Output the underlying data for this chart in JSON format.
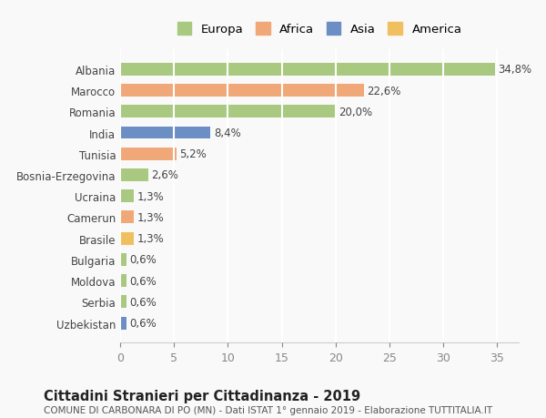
{
  "categories": [
    "Albania",
    "Marocco",
    "Romania",
    "India",
    "Tunisia",
    "Bosnia-Erzegovina",
    "Ucraina",
    "Camerun",
    "Brasile",
    "Bulgaria",
    "Moldova",
    "Serbia",
    "Uzbekistan"
  ],
  "values": [
    34.8,
    22.6,
    20.0,
    8.4,
    5.2,
    2.6,
    1.3,
    1.3,
    1.3,
    0.6,
    0.6,
    0.6,
    0.6
  ],
  "labels": [
    "34,8%",
    "22,6%",
    "20,0%",
    "8,4%",
    "5,2%",
    "2,6%",
    "1,3%",
    "1,3%",
    "1,3%",
    "0,6%",
    "0,6%",
    "0,6%",
    "0,6%"
  ],
  "colors": [
    "#a8c97f",
    "#f0a878",
    "#a8c97f",
    "#6b8fc4",
    "#f0a878",
    "#a8c97f",
    "#a8c97f",
    "#f0a878",
    "#f0c060",
    "#a8c97f",
    "#a8c97f",
    "#a8c97f",
    "#6b8fc4"
  ],
  "continent": [
    "Europa",
    "Africa",
    "Europa",
    "Asia",
    "Africa",
    "Europa",
    "Europa",
    "Africa",
    "America",
    "Europa",
    "Europa",
    "Europa",
    "Asia"
  ],
  "legend_labels": [
    "Europa",
    "Africa",
    "Asia",
    "America"
  ],
  "legend_colors": [
    "#a8c97f",
    "#f0a878",
    "#6b8fc4",
    "#f0c060"
  ],
  "title": "Cittadini Stranieri per Cittadinanza - 2019",
  "subtitle": "COMUNE DI CARBONARA DI PO (MN) - Dati ISTAT 1° gennaio 2019 - Elaborazione TUTTITALIA.IT",
  "xlim": [
    0,
    37
  ],
  "xticks": [
    0,
    5,
    10,
    15,
    20,
    25,
    30,
    35
  ],
  "background_color": "#f9f9f9",
  "grid_color": "#ffffff",
  "bar_height": 0.6
}
